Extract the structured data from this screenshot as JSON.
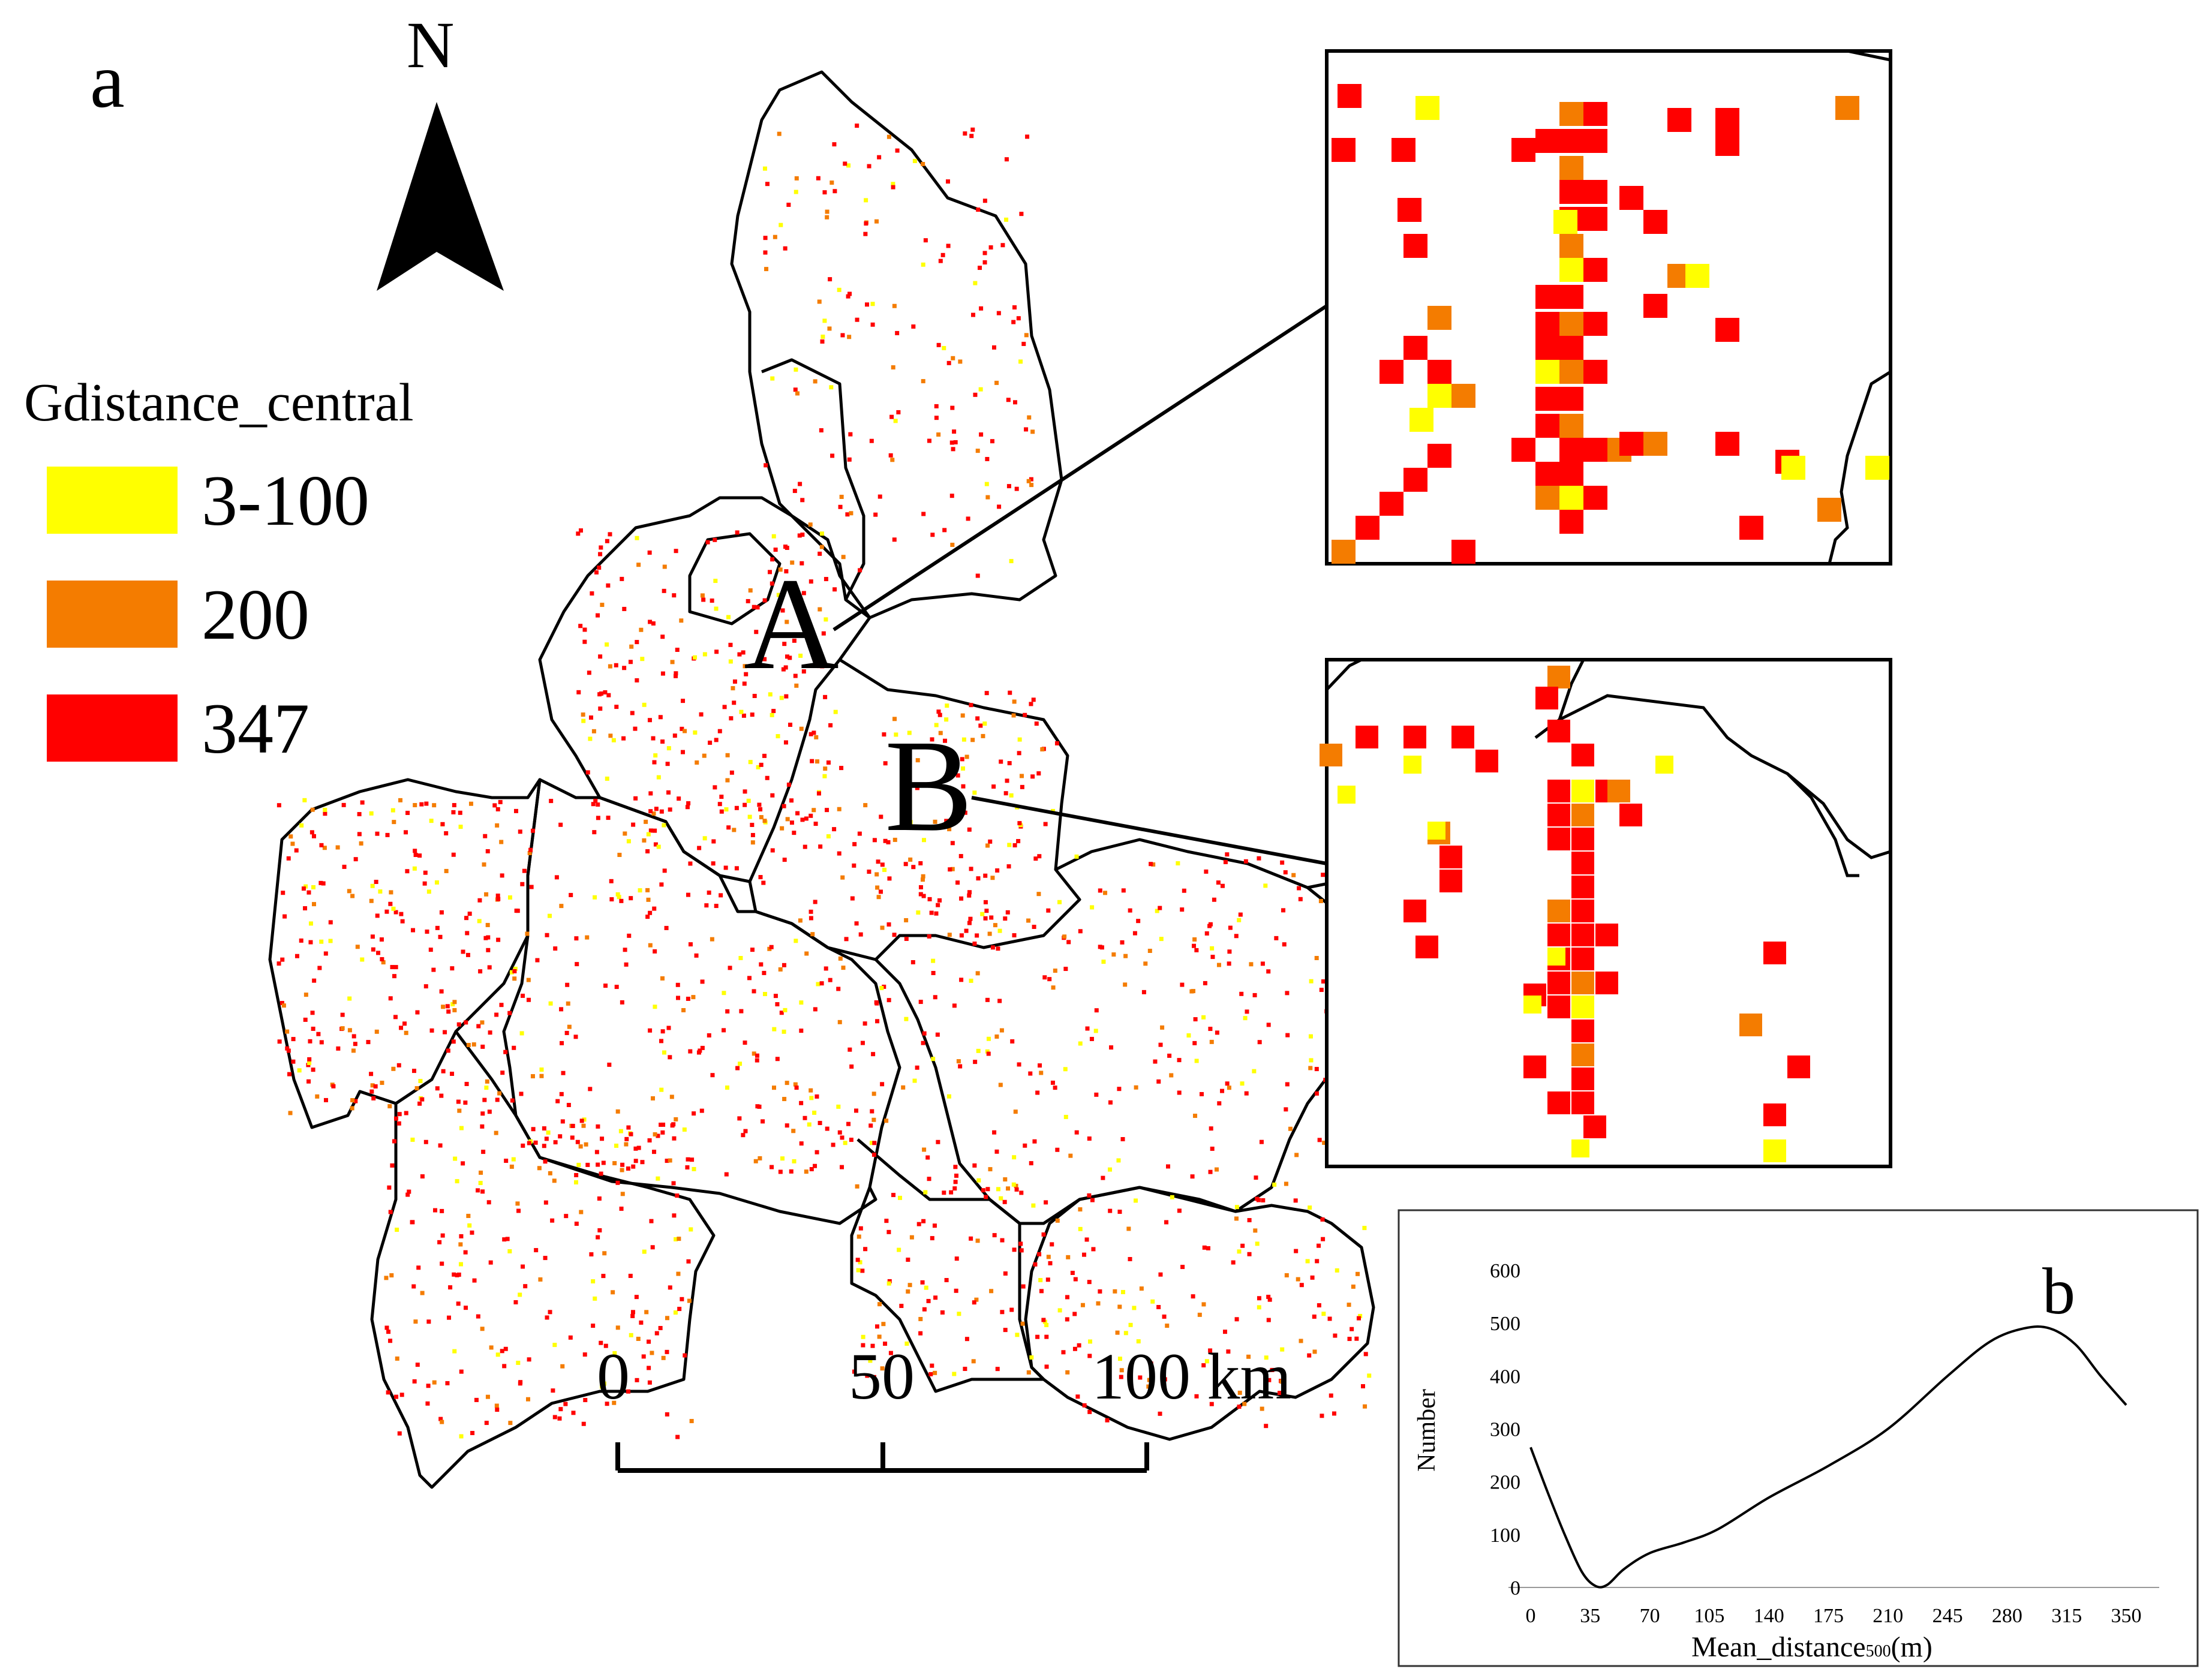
{
  "panel_a_label": "a",
  "north_label": "N",
  "legend": {
    "title": "Gdistance_central",
    "items": [
      {
        "label": "3-100",
        "color": "#ffff00"
      },
      {
        "label": "200",
        "color": "#f47c00"
      },
      {
        "label": "347",
        "color": "#ff0000"
      }
    ]
  },
  "region_labels": {
    "a": "A",
    "b": "B"
  },
  "scale_bar": {
    "labels": [
      "0",
      "50",
      "100 km"
    ]
  },
  "inset_chart": {
    "panel_label": "b",
    "chart_data": {
      "type": "line",
      "ylabel": "Number",
      "xlabel_main": "Mean_distance",
      "xlabel_sub": "500",
      "xlabel_unit": "(m)",
      "x_ticks": [
        0,
        35,
        70,
        105,
        140,
        175,
        210,
        245,
        280,
        315,
        350
      ],
      "y_ticks": [
        0,
        100,
        200,
        300,
        400,
        500,
        600
      ],
      "xlim": [
        0,
        350
      ],
      "ylim": [
        0,
        600
      ],
      "series": [
        {
          "x": [
            0,
            10,
            20,
            30,
            38,
            45,
            55,
            70,
            90,
            110,
            140,
            175,
            210,
            245,
            270,
            290,
            305,
            320,
            335,
            350
          ],
          "y": [
            265,
            180,
            100,
            30,
            3,
            5,
            35,
            65,
            85,
            110,
            170,
            230,
            300,
            400,
            465,
            490,
            490,
            460,
            400,
            345
          ]
        }
      ]
    }
  }
}
